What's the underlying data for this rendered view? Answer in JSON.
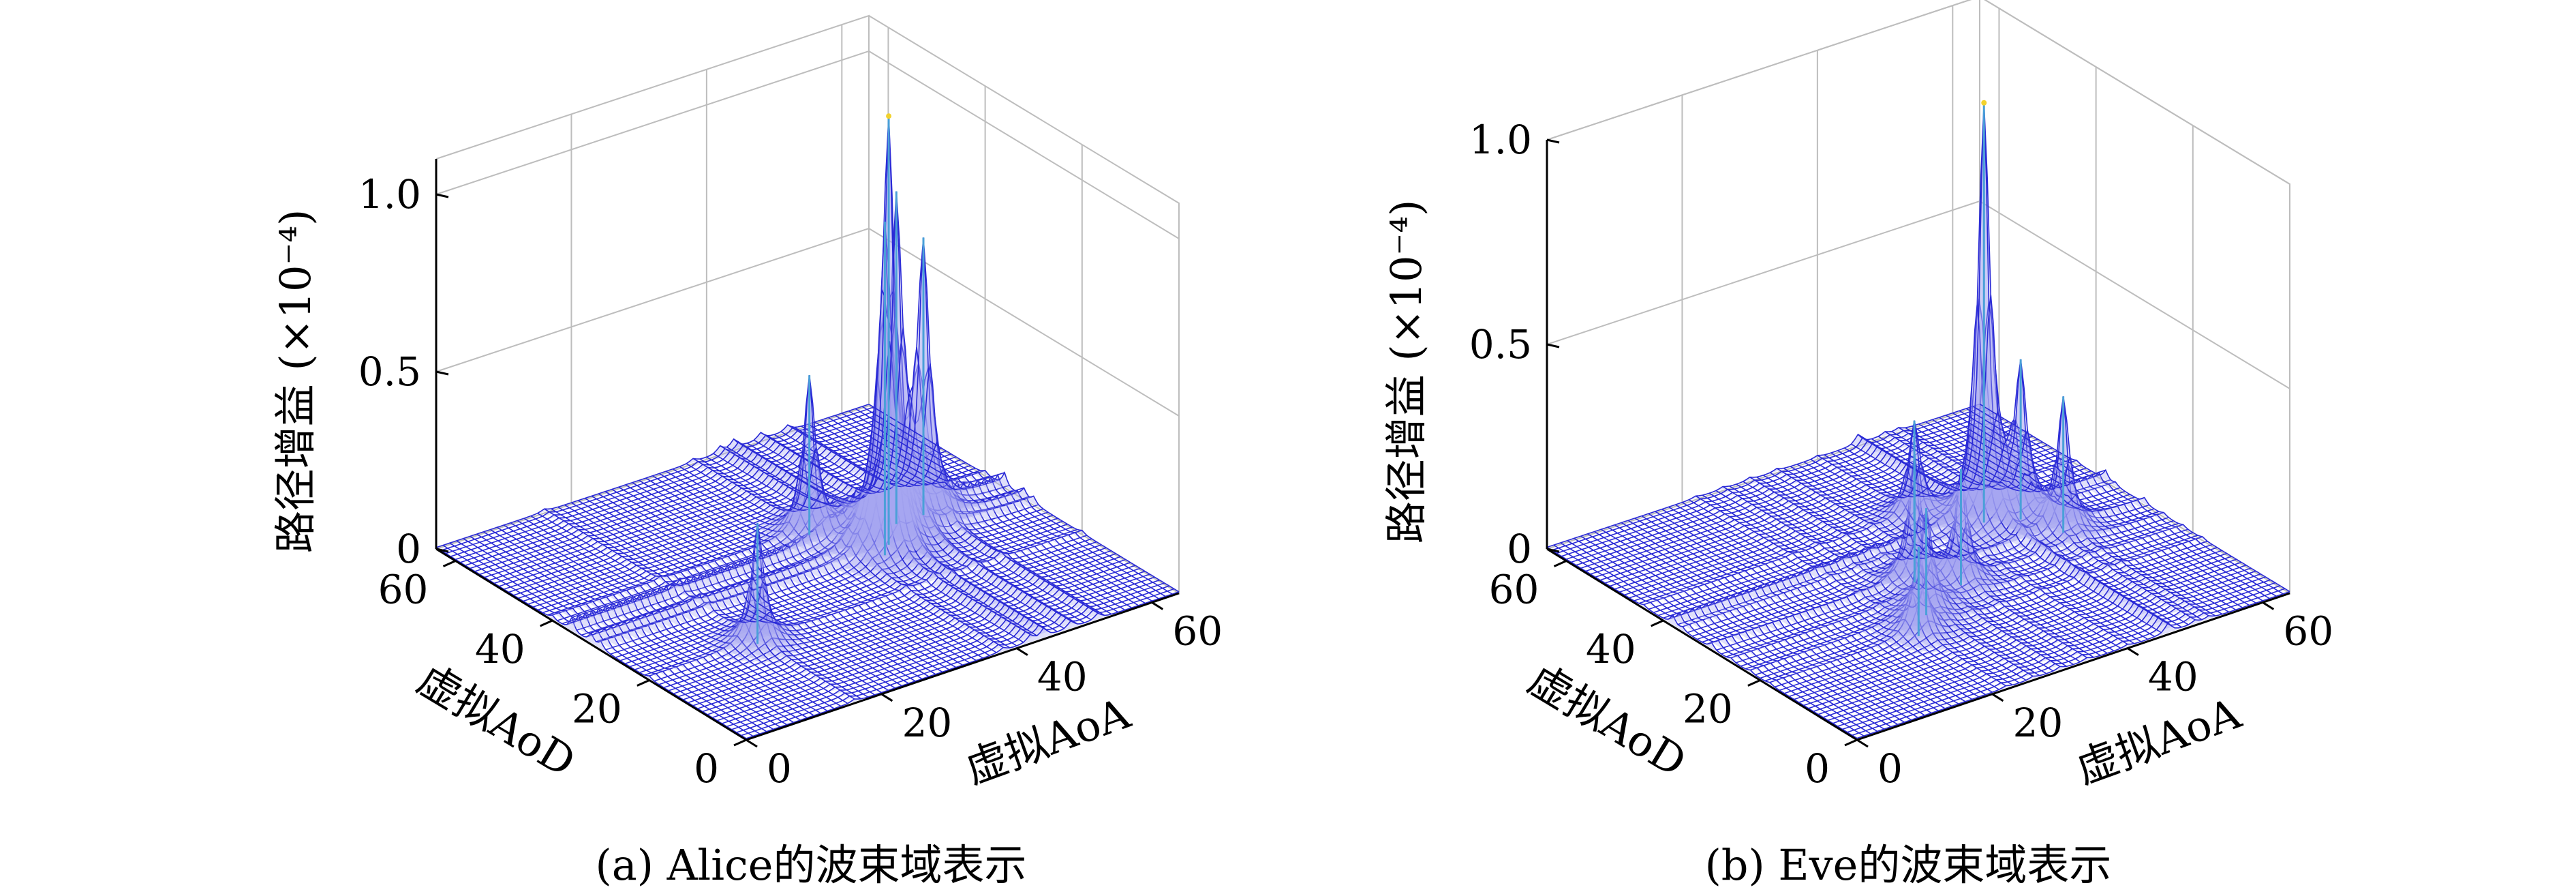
{
  "chart_data": [
    {
      "type": "surface",
      "caption": "(a) Alice的波束域表示",
      "zlabel": "路径增益 (×10⁻⁴)",
      "xlabel": "虚拟AoA",
      "ylabel": "虚拟AoD",
      "xlim": [
        0,
        64
      ],
      "ylim": [
        0,
        64
      ],
      "zlim": [
        0,
        1.1
      ],
      "z_ticks": [
        {
          "value": 0,
          "label": "0"
        },
        {
          "value": 0.5,
          "label": "0.5"
        },
        {
          "value": 1.0,
          "label": "1.0"
        }
      ],
      "x_ticks": [
        {
          "value": 0,
          "label": "0"
        },
        {
          "value": 20,
          "label": "20"
        },
        {
          "value": 40,
          "label": "40"
        },
        {
          "value": 60,
          "label": "60"
        }
      ],
      "y_ticks": [
        {
          "value": 0,
          "label": "0"
        },
        {
          "value": 20,
          "label": "20"
        },
        {
          "value": 40,
          "label": "40"
        },
        {
          "value": 60,
          "label": "60"
        }
      ],
      "grid": true,
      "peaks": [
        {
          "aoa": 44,
          "aod": 32,
          "gain": 1.05
        },
        {
          "aoa": 48,
          "aod": 36,
          "gain": 0.82
        },
        {
          "aoa": 42,
          "aod": 30,
          "gain": 0.78
        },
        {
          "aoa": 52,
          "aod": 36,
          "gain": 0.68
        },
        {
          "aoa": 38,
          "aod": 40,
          "gain": 0.42
        },
        {
          "aoa": 16,
          "aod": 20,
          "gain": 0.32
        }
      ]
    },
    {
      "type": "surface",
      "caption": "(b) Eve的波束域表示",
      "zlabel": "路径增益 (×10⁻⁴)",
      "xlabel": "虚拟AoA",
      "ylabel": "虚拟AoD",
      "xlim": [
        0,
        64
      ],
      "ylim": [
        0,
        64
      ],
      "zlim": [
        0,
        1.0
      ],
      "z_ticks": [
        {
          "value": 0,
          "label": "0"
        },
        {
          "value": 0.5,
          "label": "0.5"
        },
        {
          "value": 1.0,
          "label": "1.0"
        }
      ],
      "x_ticks": [
        {
          "value": 0,
          "label": "0"
        },
        {
          "value": 20,
          "label": "20"
        },
        {
          "value": 40,
          "label": "40"
        },
        {
          "value": 60,
          "label": "60"
        }
      ],
      "y_ticks": [
        {
          "value": 0,
          "label": "0"
        },
        {
          "value": 20,
          "label": "20"
        },
        {
          "value": 40,
          "label": "40"
        },
        {
          "value": 60,
          "label": "60"
        }
      ],
      "grid": true,
      "peaks": [
        {
          "aoa": 46,
          "aod": 38,
          "gain": 0.96
        },
        {
          "aoa": 50,
          "aod": 36,
          "gain": 0.33
        },
        {
          "aoa": 52,
          "aod": 30,
          "gain": 0.3
        },
        {
          "aoa": 30,
          "aod": 30,
          "gain": 0.28
        },
        {
          "aoa": 34,
          "aod": 26,
          "gain": 0.26
        },
        {
          "aoa": 26,
          "aod": 22,
          "gain": 0.24
        },
        {
          "aoa": 40,
          "aod": 44,
          "gain": 0.22
        },
        {
          "aoa": 22,
          "aod": 18,
          "gain": 0.2
        }
      ]
    }
  ]
}
